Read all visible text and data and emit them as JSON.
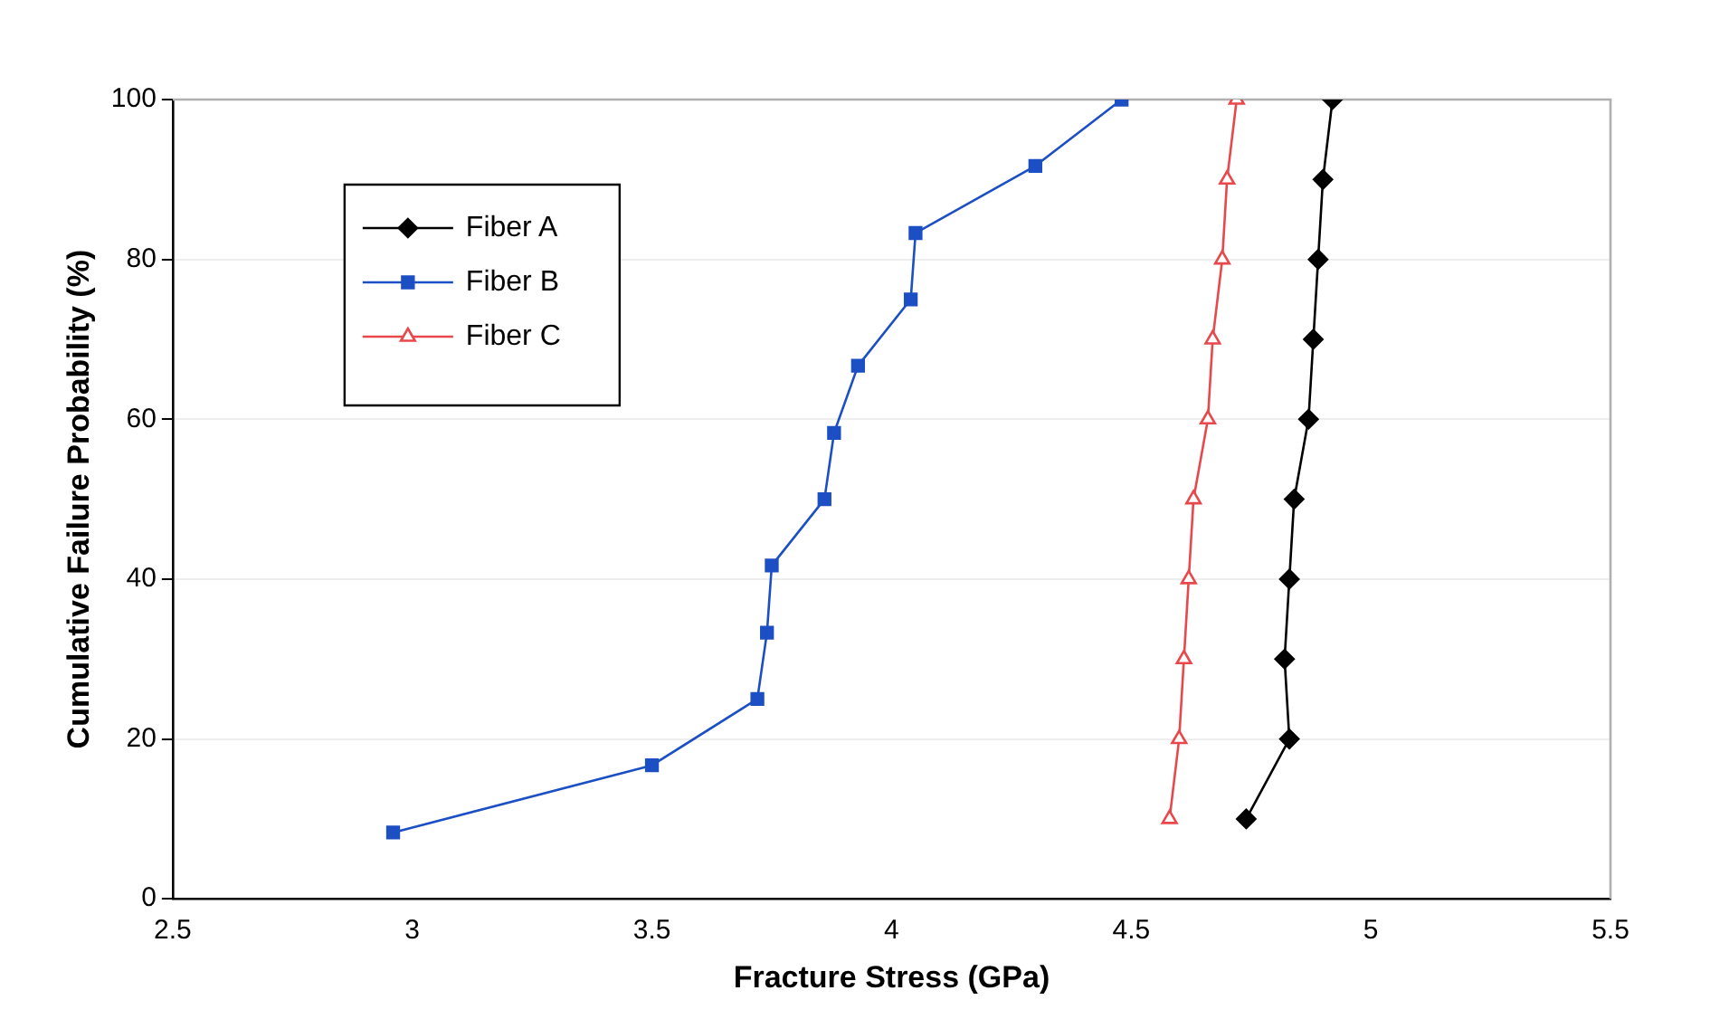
{
  "chart_data": {
    "type": "line",
    "xlabel": "Fracture Stress (GPa)",
    "ylabel": "Cumulative Failure Probability (%)",
    "xlim": [
      2.5,
      5.5
    ],
    "xticks": [
      2.5,
      3,
      3.5,
      4,
      4.5,
      5,
      5.5
    ],
    "ylim": [
      0,
      100
    ],
    "yticks": [
      0,
      20,
      40,
      60,
      80,
      100
    ],
    "grid": "y",
    "legend": "top left",
    "series": [
      {
        "name": "Fiber A",
        "color": "#000000",
        "marker": "diamond",
        "x": [
          4.74,
          4.83,
          4.82,
          4.83,
          4.84,
          4.87,
          4.88,
          4.89,
          4.9,
          4.92
        ],
        "values": [
          10,
          20,
          30,
          40,
          50,
          60,
          70,
          80,
          90,
          100
        ]
      },
      {
        "name": "Fiber B",
        "color": "#1c4fc4",
        "marker": "square",
        "x": [
          2.96,
          3.5,
          3.72,
          3.74,
          3.75,
          3.86,
          3.88,
          3.93,
          4.04,
          4.05,
          4.3,
          4.48
        ],
        "values": [
          8.3,
          16.7,
          25,
          33.3,
          41.7,
          50,
          58.3,
          66.7,
          75,
          83.3,
          91.7,
          100
        ]
      },
      {
        "name": "Fiber C",
        "color": "#e8474b",
        "marker": "triangle",
        "x": [
          4.58,
          4.6,
          4.61,
          4.62,
          4.63,
          4.66,
          4.67,
          4.69,
          4.7,
          4.72
        ],
        "values": [
          10,
          20,
          30,
          40,
          50,
          60,
          70,
          80,
          90,
          100
        ]
      }
    ]
  }
}
